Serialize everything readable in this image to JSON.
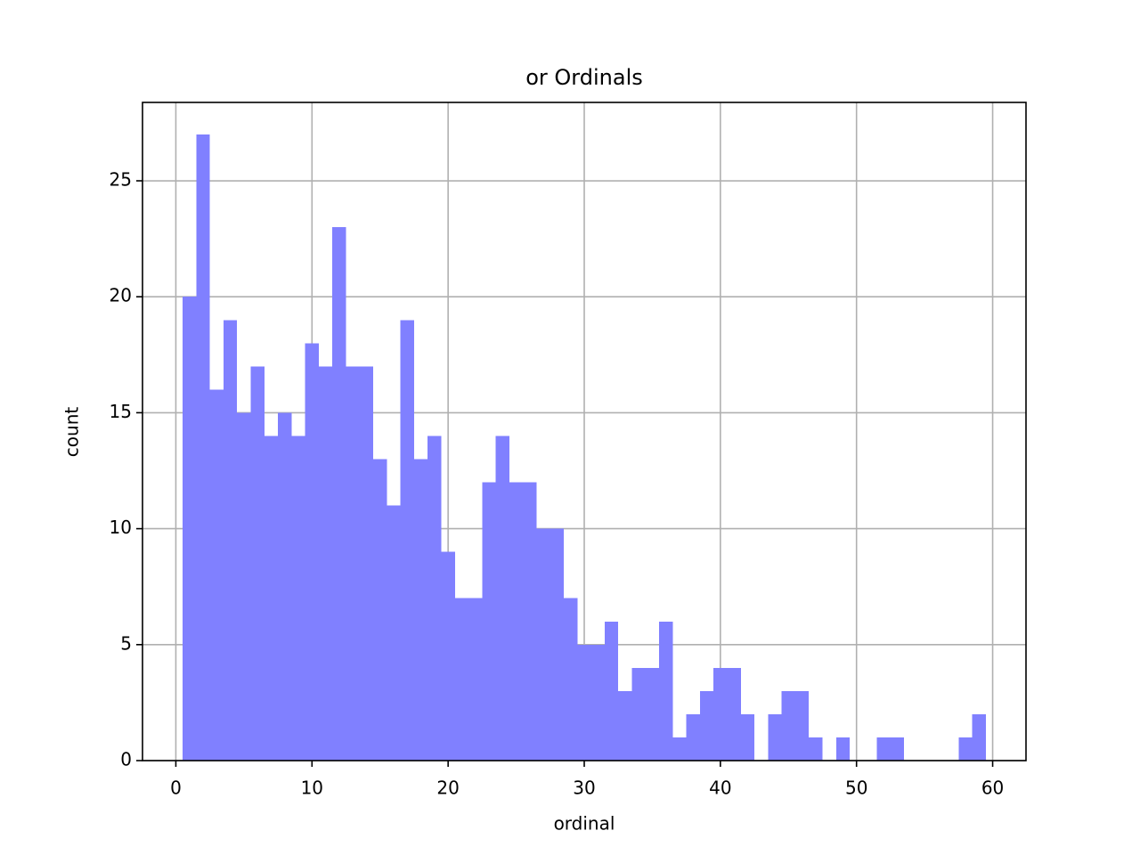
{
  "chart_data": {
    "type": "histogram",
    "title": "or Ordinals",
    "x_label": "ordinal",
    "y_label": "count",
    "bins": [
      0.5,
      1.5,
      2.5,
      3.5,
      4.5,
      5.5,
      6.5,
      7.5,
      8.5,
      9.5,
      10.5,
      11.5,
      12.5,
      13.5,
      14.5,
      15.5,
      16.5,
      17.5,
      18.5,
      19.5,
      20.5,
      21.5,
      22.5,
      23.5,
      24.5,
      25.5,
      26.5,
      27.5,
      28.5,
      29.5,
      30.5,
      31.5,
      32.5,
      33.5,
      34.5,
      35.5,
      36.5,
      37.5,
      38.5,
      39.5,
      40.5,
      41.5,
      42.5,
      43.5,
      44.5,
      45.5,
      46.5,
      47.5,
      48.5,
      49.5,
      50.5,
      51.5,
      52.5,
      53.5,
      54.5,
      55.5,
      56.5,
      57.5,
      58.5,
      59.5
    ],
    "values": [
      20,
      27,
      16,
      19,
      15,
      17,
      14,
      15,
      14,
      18,
      17,
      23,
      17,
      17,
      13,
      11,
      19,
      13,
      14,
      9,
      7,
      7,
      12,
      14,
      12,
      12,
      10,
      10,
      7,
      5,
      5,
      6,
      3,
      4,
      4,
      6,
      1,
      2,
      3,
      4,
      4,
      2,
      0,
      2,
      3,
      3,
      1,
      0,
      1,
      0,
      0,
      1,
      1,
      0,
      0,
      0,
      0,
      1,
      2
    ],
    "color": "#8080ff",
    "xlim": [
      -2.45,
      62.45
    ],
    "xticks": [
      0,
      10,
      20,
      30,
      40,
      50,
      60
    ],
    "ylim": [
      0,
      28.38
    ],
    "yticks": [
      0,
      5,
      10,
      15,
      20,
      25
    ],
    "grid": true
  }
}
